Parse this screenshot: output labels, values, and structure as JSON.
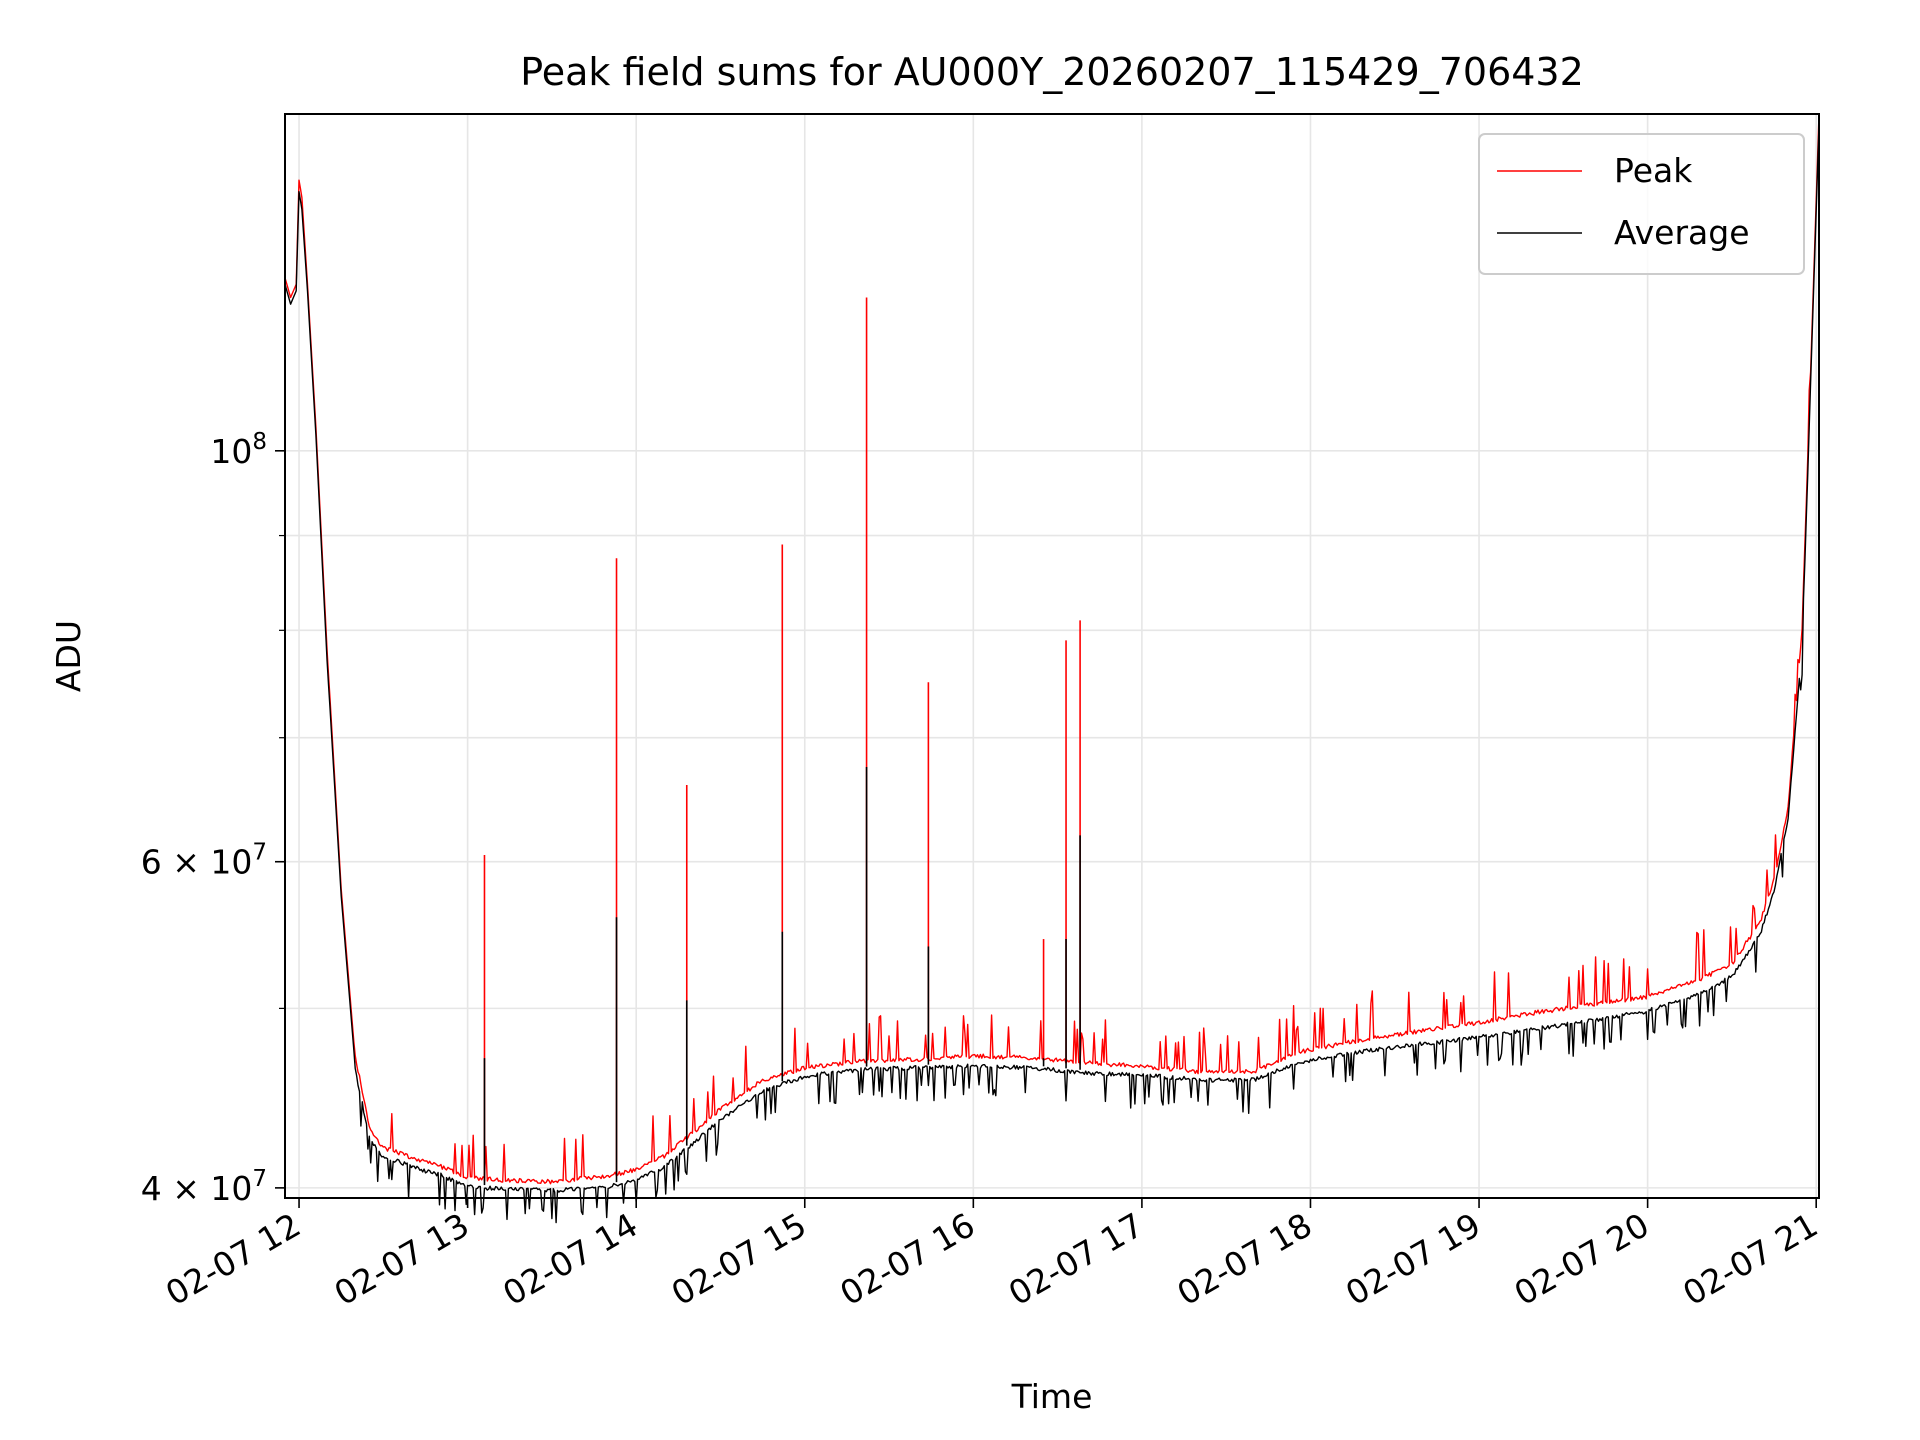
{
  "chart_data": {
    "type": "line",
    "title": "Peak field sums for AU000Y_20260207_115429_706432",
    "xlabel": "Time",
    "ylabel": "ADU",
    "y_scale": "log",
    "grid": true,
    "legend_position": "top-right",
    "xlim": [
      "2026-02-07 11:55",
      "2026-02-07 21:01"
    ],
    "ylim": [
      39500000,
      152000000
    ],
    "x_ticks": [
      {
        "label": "02-07 12",
        "value": "2026-02-07 12:00"
      },
      {
        "label": "02-07 13",
        "value": "2026-02-07 13:00"
      },
      {
        "label": "02-07 14",
        "value": "2026-02-07 14:00"
      },
      {
        "label": "02-07 15",
        "value": "2026-02-07 15:00"
      },
      {
        "label": "02-07 16",
        "value": "2026-02-07 16:00"
      },
      {
        "label": "02-07 17",
        "value": "2026-02-07 17:00"
      },
      {
        "label": "02-07 18",
        "value": "2026-02-07 18:00"
      },
      {
        "label": "02-07 19",
        "value": "2026-02-07 19:00"
      },
      {
        "label": "02-07 20",
        "value": "2026-02-07 20:00"
      },
      {
        "label": "02-07 21",
        "value": "2026-02-07 21:00"
      }
    ],
    "y_ticks": [
      {
        "base": "4",
        "exp": "7",
        "value": 40000000
      },
      {
        "base": "6",
        "exp": "7",
        "value": 60000000
      },
      {
        "base": "",
        "exp": "8",
        "value": 100000000
      }
    ],
    "y_minor_ticks": [
      50000000,
      70000000,
      80000000,
      90000000
    ],
    "series": [
      {
        "name": "Peak",
        "color": "#ff0000",
        "x": [
          "2026-02-07 11:55",
          "2026-02-07 11:57",
          "2026-02-07 11:59",
          "2026-02-07 12:00",
          "2026-02-07 12:01",
          "2026-02-07 12:03",
          "2026-02-07 12:06",
          "2026-02-07 12:10",
          "2026-02-07 12:15",
          "2026-02-07 12:20",
          "2026-02-07 12:25",
          "2026-02-07 12:30",
          "2026-02-07 12:35",
          "2026-02-07 12:40",
          "2026-02-07 12:50",
          "2026-02-07 13:00",
          "2026-02-07 13:10",
          "2026-02-07 13:30",
          "2026-02-07 13:50",
          "2026-02-07 14:00",
          "2026-02-07 14:10",
          "2026-02-07 14:20",
          "2026-02-07 14:30",
          "2026-02-07 14:45",
          "2026-02-07 15:00",
          "2026-02-07 15:20",
          "2026-02-07 15:40",
          "2026-02-07 16:00",
          "2026-02-07 16:20",
          "2026-02-07 16:40",
          "2026-02-07 17:00",
          "2026-02-07 17:20",
          "2026-02-07 17:40",
          "2026-02-07 17:55",
          "2026-02-07 18:20",
          "2026-02-07 18:40",
          "2026-02-07 19:00",
          "2026-02-07 19:20",
          "2026-02-07 19:40",
          "2026-02-07 20:00",
          "2026-02-07 20:10",
          "2026-02-07 20:20",
          "2026-02-07 20:30",
          "2026-02-07 20:40",
          "2026-02-07 20:45",
          "2026-02-07 20:50",
          "2026-02-07 20:55",
          "2026-02-07 21:01"
        ],
        "y": [
          124000000,
          121000000,
          123000000,
          140000000,
          137000000,
          123000000,
          103000000,
          78000000,
          58000000,
          47000000,
          43000000,
          41900000,
          41700000,
          41400000,
          41000000,
          40400000,
          40300000,
          40200000,
          40500000,
          40800000,
          41500000,
          42700000,
          44000000,
          45600000,
          46300000,
          46700000,
          46800000,
          47000000,
          46900000,
          46600000,
          46400000,
          46100000,
          46100000,
          47200000,
          48000000,
          48500000,
          49000000,
          49600000,
          50100000,
          50600000,
          51200000,
          51800000,
          52700000,
          55500000,
          58500000,
          64000000,
          80000000,
          152000000
        ]
      },
      {
        "name": "Average",
        "color": "#000000",
        "x": [
          "2026-02-07 11:55",
          "2026-02-07 11:57",
          "2026-02-07 11:59",
          "2026-02-07 12:00",
          "2026-02-07 12:01",
          "2026-02-07 12:03",
          "2026-02-07 12:06",
          "2026-02-07 12:10",
          "2026-02-07 12:15",
          "2026-02-07 12:20",
          "2026-02-07 12:25",
          "2026-02-07 12:30",
          "2026-02-07 12:35",
          "2026-02-07 12:40",
          "2026-02-07 12:50",
          "2026-02-07 13:00",
          "2026-02-07 13:10",
          "2026-02-07 13:30",
          "2026-02-07 13:50",
          "2026-02-07 14:00",
          "2026-02-07 14:10",
          "2026-02-07 14:20",
          "2026-02-07 14:30",
          "2026-02-07 14:45",
          "2026-02-07 15:00",
          "2026-02-07 15:20",
          "2026-02-07 15:40",
          "2026-02-07 16:00",
          "2026-02-07 16:20",
          "2026-02-07 16:40",
          "2026-02-07 17:00",
          "2026-02-07 17:20",
          "2026-02-07 17:40",
          "2026-02-07 17:55",
          "2026-02-07 18:20",
          "2026-02-07 18:40",
          "2026-02-07 19:00",
          "2026-02-07 19:20",
          "2026-02-07 19:40",
          "2026-02-07 20:00",
          "2026-02-07 20:10",
          "2026-02-07 20:20",
          "2026-02-07 20:30",
          "2026-02-07 20:40",
          "2026-02-07 20:45",
          "2026-02-07 20:50",
          "2026-02-07 20:55",
          "2026-02-07 21:01"
        ],
        "y": [
          123000000,
          120000000,
          122000000,
          138000000,
          135000000,
          122000000,
          102000000,
          77000000,
          57500000,
          46500000,
          42700000,
          41700000,
          41500000,
          41200000,
          40800000,
          40200000,
          40100000,
          40000000,
          40200000,
          40500000,
          41200000,
          42400000,
          43700000,
          45300000,
          46100000,
          46500000,
          46600000,
          46700000,
          46600000,
          46300000,
          46200000,
          45900000,
          45900000,
          46900000,
          47600000,
          48000000,
          48400000,
          48900000,
          49400000,
          50000000,
          50600000,
          51200000,
          52200000,
          55000000,
          58000000,
          63500000,
          79000000,
          150000000
        ]
      }
    ],
    "spikes": [
      {
        "x": "2026-02-07 13:06",
        "peak": 60500000,
        "average": 47000000
      },
      {
        "x": "2026-02-07 13:53",
        "peak": 87500000,
        "average": 56000000
      },
      {
        "x": "2026-02-07 14:18",
        "peak": 66000000,
        "average": 50500000
      },
      {
        "x": "2026-02-07 14:52",
        "peak": 89000000,
        "average": 55000000
      },
      {
        "x": "2026-02-07 15:22",
        "peak": 121000000,
        "average": 67500000
      },
      {
        "x": "2026-02-07 15:44",
        "peak": 75000000,
        "average": 54000000
      },
      {
        "x": "2026-02-07 16:25",
        "peak": 54500000,
        "average": 47000000
      },
      {
        "x": "2026-02-07 16:33",
        "peak": 79000000,
        "average": 54500000
      },
      {
        "x": "2026-02-07 16:38",
        "peak": 81000000,
        "average": 62000000
      }
    ]
  }
}
